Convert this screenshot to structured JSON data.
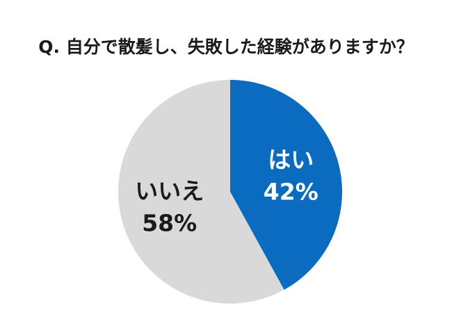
{
  "chart_data": {
    "type": "pie",
    "title": "Q. 自分で散髪し、失敗した経験がありますか？",
    "categories": [
      "はい",
      "いいえ"
    ],
    "values": [
      42,
      58
    ],
    "value_labels": [
      "42%",
      "58%"
    ],
    "colors": [
      "#0a6bbf",
      "#d9d9d9"
    ],
    "label_colors": [
      "#ffffff",
      "#1a1a1a"
    ],
    "start": "12 o'clock",
    "direction": "clockwise",
    "legend": "none"
  }
}
